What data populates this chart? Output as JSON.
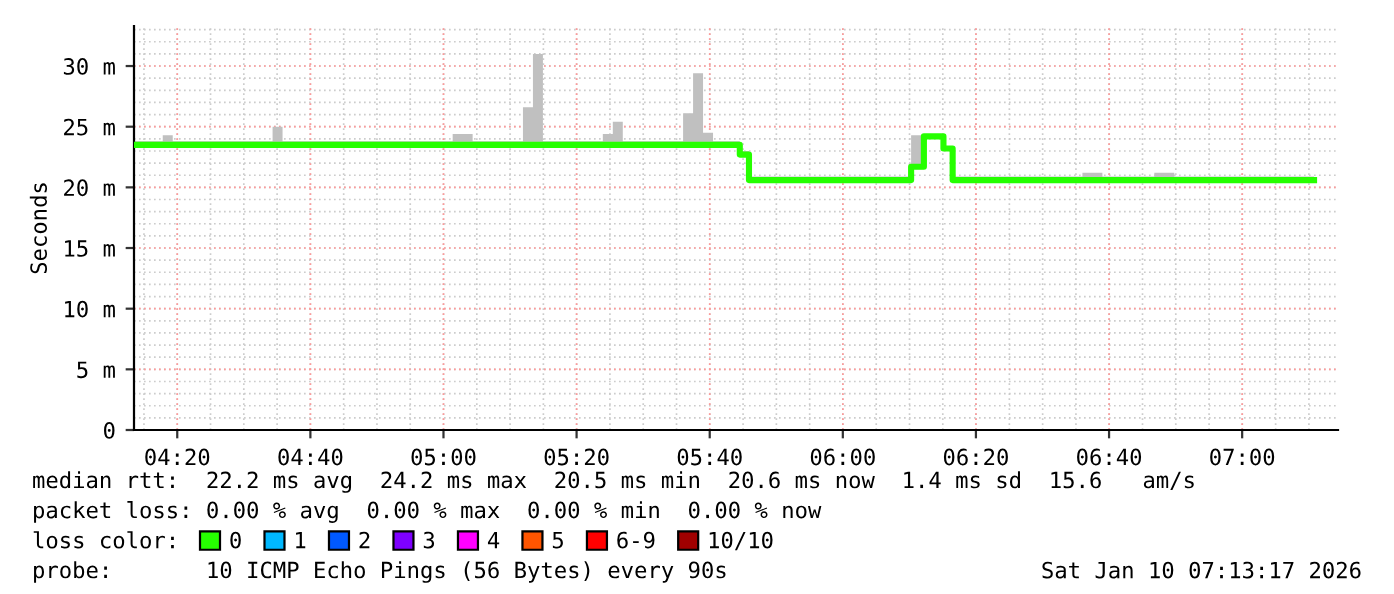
{
  "chart_data": {
    "type": "step",
    "ylabel": "Seconds",
    "x": [
      4.225,
      4.297,
      4.322,
      4.572,
      4.597,
      5.023,
      5.073,
      5.199,
      5.224,
      5.249,
      5.399,
      5.424,
      5.449,
      5.6,
      5.625,
      5.65,
      5.675,
      5.742,
      5.765,
      6.171,
      6.203,
      6.252,
      6.275,
      6.6,
      6.65,
      6.78,
      6.83,
      7.18
    ],
    "series": [
      {
        "name": "0",
        "color": "#26ff00",
        "values": [
          23.5,
          23.5,
          23.5,
          23.5,
          23.5,
          23.5,
          23.5,
          23.5,
          23.5,
          23.5,
          23.5,
          23.5,
          23.5,
          23.5,
          23.5,
          23.5,
          23.5,
          22.7,
          20.6,
          21.7,
          24.2,
          23.2,
          20.6,
          20.6,
          20.6,
          20.6,
          20.6,
          20.6
        ],
        "lower": [
          23.3,
          23.3,
          23.3,
          23.3,
          23.3,
          23.3,
          23.3,
          23.3,
          23.3,
          23.3,
          23.3,
          23.3,
          23.3,
          23.3,
          23.3,
          23.3,
          23.3,
          22.5,
          20.4,
          21.5,
          24.0,
          23.0,
          20.4,
          20.4,
          20.4,
          20.4,
          20.4,
          20.4
        ],
        "upper": [
          23.8,
          24.3,
          23.8,
          25.0,
          23.8,
          24.4,
          23.8,
          26.6,
          31.0,
          23.8,
          24.4,
          25.4,
          23.8,
          26.1,
          29.4,
          24.5,
          23.8,
          23.0,
          20.9,
          24.3,
          24.3,
          23.4,
          20.9,
          21.2,
          20.9,
          21.2,
          20.9,
          20.9
        ]
      },
      {
        "name": "1",
        "color": "#00b8ff",
        "values": [
          null,
          null,
          null,
          null,
          null,
          null,
          null,
          null,
          null,
          null,
          null,
          null,
          null,
          null,
          null,
          null,
          null,
          null,
          null,
          null,
          null,
          null,
          null,
          null,
          null,
          null,
          null,
          null
        ]
      },
      {
        "name": "2",
        "color": "#0059ff",
        "values": [
          null,
          null,
          null,
          null,
          null,
          null,
          null,
          null,
          null,
          null,
          null,
          null,
          null,
          null,
          null,
          null,
          null,
          null,
          null,
          null,
          null,
          null,
          null,
          null,
          null,
          null,
          null,
          null
        ]
      },
      {
        "name": "3",
        "color": "#7e00ff",
        "values": [
          null,
          null,
          null,
          null,
          null,
          null,
          null,
          null,
          null,
          null,
          null,
          null,
          null,
          null,
          null,
          null,
          null,
          null,
          null,
          null,
          null,
          null,
          null,
          null,
          null,
          null,
          null,
          null
        ]
      },
      {
        "name": "4",
        "color": "#ff00ff",
        "values": [
          null,
          null,
          null,
          null,
          null,
          null,
          null,
          null,
          null,
          null,
          null,
          null,
          null,
          null,
          null,
          null,
          null,
          null,
          null,
          null,
          null,
          null,
          null,
          null,
          null,
          null,
          null,
          null
        ]
      },
      {
        "name": "5",
        "color": "#ff5500",
        "values": [
          null,
          null,
          null,
          null,
          null,
          null,
          null,
          null,
          null,
          null,
          null,
          null,
          null,
          null,
          null,
          null,
          null,
          null,
          null,
          null,
          null,
          null,
          null,
          null,
          null,
          null,
          null,
          null
        ]
      },
      {
        "name": "6-9",
        "color": "#ff0000",
        "values": [
          null,
          null,
          null,
          null,
          null,
          null,
          null,
          null,
          null,
          null,
          null,
          null,
          null,
          null,
          null,
          null,
          null,
          null,
          null,
          null,
          null,
          null,
          null,
          null,
          null,
          null,
          null,
          null
        ]
      },
      {
        "name": "10/10",
        "color": "#a00000",
        "values": [
          null,
          null,
          null,
          null,
          null,
          null,
          null,
          null,
          null,
          null,
          null,
          null,
          null,
          null,
          null,
          null,
          null,
          null,
          null,
          null,
          null,
          null,
          null,
          null,
          null,
          null,
          null,
          null
        ]
      }
    ],
    "xlim": [
      4.225,
      7.24
    ],
    "xticks": [
      {
        "value": 4.3333,
        "label": "04:20"
      },
      {
        "value": 4.6667,
        "label": "04:40"
      },
      {
        "value": 5,
        "label": "05:00"
      },
      {
        "value": 5.3333,
        "label": "05:20"
      },
      {
        "value": 5.6667,
        "label": "05:40"
      },
      {
        "value": 6,
        "label": "06:00"
      },
      {
        "value": 6.3333,
        "label": "06:20"
      },
      {
        "value": 6.6667,
        "label": "06:40"
      },
      {
        "value": 7,
        "label": "07:00"
      }
    ],
    "ylim": [
      0,
      33.3
    ],
    "yticks": [
      0,
      {
        "value": 5,
        "label": "5 m"
      },
      {
        "value": 10,
        "label": "10 m"
      },
      {
        "value": 15,
        "label": "15 m"
      },
      {
        "value": 20,
        "label": "20 m"
      },
      {
        "value": 25,
        "label": "25 m"
      },
      {
        "value": 30,
        "label": "30 m"
      }
    ],
    "grid": true,
    "legend": "bottom",
    "annotations": [
      "median rtt:  22.2 ms avg  24.2 ms max  20.5 ms min  20.6 ms now  1.4 ms sd  15.6   am/s",
      "packet loss: 0.00 % avg  0.00 % max  0.00 % min  0.00 % now",
      "loss color:",
      "probe:       10 ICMP Echo Pings (56 Bytes) every 90s",
      "Sat Jan 10 07:13:17 2026"
    ]
  }
}
